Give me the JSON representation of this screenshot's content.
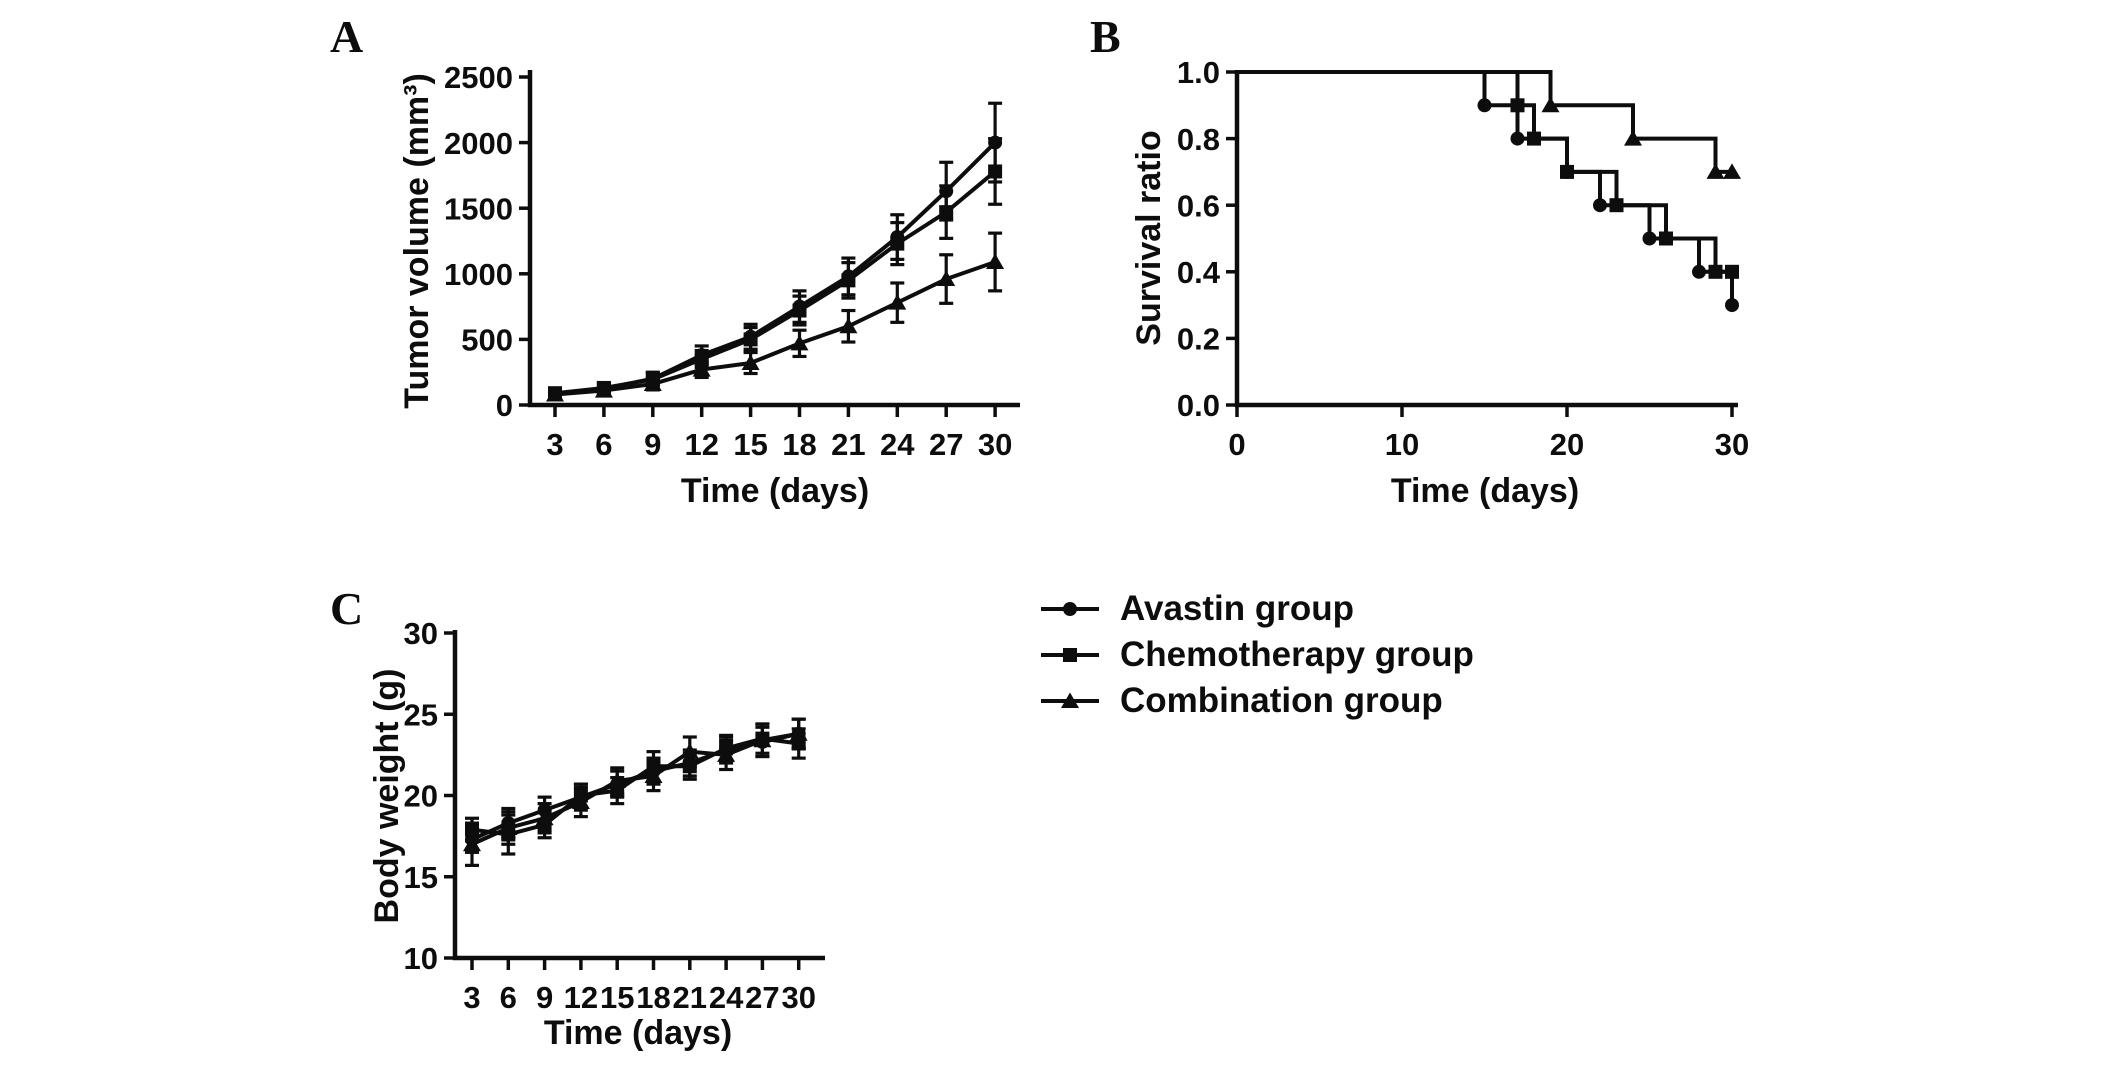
{
  "background": "#ffffff",
  "ink_color": "#0d0d0d",
  "chart_data": [
    {
      "panel": "A",
      "type": "line",
      "xlabel": "Time (days)",
      "ylabel": "Tumor volume (mm³)",
      "x_ticks": [
        3,
        6,
        9,
        12,
        15,
        18,
        21,
        24,
        27,
        30
      ],
      "x_tick_labels": [
        "3",
        "6",
        "9",
        "12",
        "15",
        "18",
        "21",
        "24",
        "27",
        "30"
      ],
      "y_ticks": [
        0,
        500,
        1000,
        1500,
        2000,
        2500
      ],
      "y_tick_labels": [
        "0",
        "500",
        "1000",
        "1500",
        "2000",
        "2500"
      ],
      "xlim": [
        1.5,
        31.5
      ],
      "ylim": [
        0,
        2500
      ],
      "x": [
        3,
        6,
        9,
        12,
        15,
        18,
        21,
        24,
        27,
        30
      ],
      "series": [
        {
          "name": "Avastin group",
          "marker": "circle",
          "values": [
            85,
            125,
            200,
            380,
            520,
            750,
            980,
            1280,
            1630,
            2000
          ],
          "err": [
            25,
            35,
            50,
            70,
            95,
            120,
            140,
            170,
            220,
            300
          ]
        },
        {
          "name": "Chemotherapy group",
          "marker": "square",
          "values": [
            90,
            130,
            195,
            350,
            500,
            720,
            950,
            1230,
            1470,
            1780
          ],
          "err": [
            25,
            35,
            50,
            65,
            90,
            110,
            135,
            160,
            200,
            250
          ]
        },
        {
          "name": "Combination group",
          "marker": "triangle",
          "values": [
            80,
            110,
            160,
            270,
            320,
            470,
            600,
            780,
            960,
            1090
          ],
          "err": [
            20,
            30,
            45,
            60,
            80,
            100,
            120,
            150,
            185,
            220
          ]
        }
      ]
    },
    {
      "panel": "B",
      "type": "step",
      "xlabel": "Time (days)",
      "ylabel": "Survival ratio",
      "x_ticks": [
        0,
        10,
        20,
        30
      ],
      "x_tick_labels": [
        "0",
        "10",
        "20",
        "30"
      ],
      "y_ticks": [
        0.0,
        0.2,
        0.4,
        0.6,
        0.8,
        1.0
      ],
      "y_tick_labels": [
        "0.0",
        "0.2",
        "0.4",
        "0.6",
        "0.8",
        "1.0"
      ],
      "xlim": [
        0,
        30
      ],
      "ylim": [
        0,
        1
      ],
      "series": [
        {
          "name": "Avastin group",
          "marker": "circle",
          "start": [
            0,
            1.0
          ],
          "drops": [
            [
              15,
              0.9
            ],
            [
              17,
              0.8
            ],
            [
              20,
              0.7
            ],
            [
              22,
              0.6
            ],
            [
              25,
              0.5
            ],
            [
              28,
              0.4
            ],
            [
              30,
              0.3
            ]
          ],
          "end_day": 30
        },
        {
          "name": "Chemotherapy group",
          "marker": "square",
          "start": [
            0,
            1.0
          ],
          "drops": [
            [
              17,
              0.9
            ],
            [
              18,
              0.8
            ],
            [
              20,
              0.7
            ],
            [
              23,
              0.6
            ],
            [
              26,
              0.5
            ],
            [
              29,
              0.4
            ]
          ],
          "end_day": 30
        },
        {
          "name": "Combination group",
          "marker": "triangle",
          "start": [
            0,
            1.0
          ],
          "drops": [
            [
              19,
              0.9
            ],
            [
              24,
              0.8
            ],
            [
              29,
              0.7
            ]
          ],
          "end_day": 30
        }
      ]
    },
    {
      "panel": "C",
      "type": "line",
      "xlabel": "Time (days)",
      "ylabel": "Body weight (g)",
      "x_ticks": [
        3,
        6,
        9,
        12,
        15,
        18,
        21,
        24,
        27,
        30
      ],
      "x_tick_labels": [
        "3",
        "6",
        "9",
        "12",
        "15",
        "18",
        "21",
        "24",
        "27",
        "30"
      ],
      "y_ticks": [
        10,
        15,
        20,
        25,
        30
      ],
      "y_tick_labels": [
        "10",
        "15",
        "20",
        "25",
        "30"
      ],
      "xlim": [
        1.5,
        31.5
      ],
      "ylim": [
        10,
        30
      ],
      "x": [
        3,
        6,
        9,
        12,
        15,
        18,
        21,
        24,
        27,
        30
      ],
      "series": [
        {
          "name": "Avastin group",
          "marker": "circle",
          "values": [
            17.3,
            18.3,
            19.1,
            19.9,
            20.7,
            21.5,
            22.0,
            22.8,
            23.3,
            23.8
          ],
          "err": [
            0.8,
            0.9,
            0.8,
            0.8,
            0.8,
            0.8,
            0.8,
            0.8,
            0.9,
            0.9
          ]
        },
        {
          "name": "Chemotherapy group",
          "marker": "square",
          "values": [
            17.9,
            17.6,
            18.2,
            20.0,
            20.3,
            21.8,
            21.8,
            22.9,
            23.5,
            23.2
          ],
          "err": [
            0.7,
            1.2,
            0.8,
            0.7,
            0.8,
            0.9,
            0.8,
            0.8,
            0.9,
            0.9
          ]
        },
        {
          "name": "Combination group",
          "marker": "triangle",
          "values": [
            17.0,
            18.0,
            18.6,
            19.6,
            20.9,
            21.2,
            22.7,
            22.5,
            23.4,
            23.8
          ],
          "err": [
            1.3,
            1.0,
            0.9,
            0.9,
            0.8,
            0.9,
            0.9,
            0.9,
            1.0,
            0.9
          ]
        }
      ]
    }
  ],
  "legend": {
    "items": [
      {
        "label": "Avastin group",
        "marker": "circle"
      },
      {
        "label": "Chemotherapy group",
        "marker": "square"
      },
      {
        "label": "Combination group",
        "marker": "triangle"
      }
    ]
  }
}
